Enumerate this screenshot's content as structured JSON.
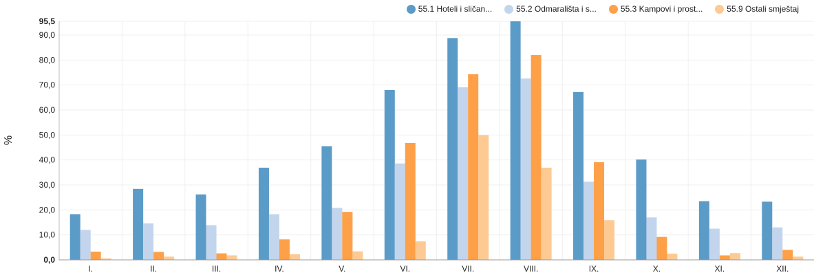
{
  "chart_data": {
    "type": "bar",
    "title": "",
    "xlabel": "",
    "ylabel": "%",
    "ylim": [
      0,
      95.5
    ],
    "yticks": [
      "0,0",
      "10,0",
      "20,0",
      "30,0",
      "40,0",
      "50,0",
      "60,0",
      "70,0",
      "80,0",
      "90,0",
      "95,5"
    ],
    "ytick_values": [
      0,
      10,
      20,
      30,
      40,
      50,
      60,
      70,
      80,
      90,
      95.5
    ],
    "grid": true,
    "legend_position": "top-right",
    "categories": [
      "I.",
      "II.",
      "III.",
      "IV.",
      "V.",
      "VI.",
      "VII.",
      "VIII.",
      "IX.",
      "X.",
      "XI.",
      "XII."
    ],
    "series": [
      {
        "name": "55.1 Hoteli i sličan...",
        "color": "#5b9bc8",
        "values": [
          18.3,
          28.4,
          26.2,
          36.9,
          45.5,
          68.0,
          88.8,
          95.5,
          67.2,
          40.2,
          23.5,
          23.3
        ]
      },
      {
        "name": "55.2 Odmarališta i s...",
        "color": "#c3d5ec",
        "values": [
          12.0,
          14.6,
          13.9,
          18.3,
          20.8,
          38.6,
          69.1,
          72.6,
          31.3,
          17.0,
          12.5,
          13.0
        ]
      },
      {
        "name": "55.3 Kampovi i prost...",
        "color": "#fda048",
        "values": [
          3.3,
          3.2,
          2.6,
          8.2,
          19.2,
          46.8,
          74.3,
          82.0,
          39.1,
          9.2,
          1.8,
          4.0
        ]
      },
      {
        "name": "55.9 Ostali smještaj",
        "color": "#fdca94",
        "values": [
          0.6,
          1.3,
          1.8,
          2.3,
          3.4,
          7.4,
          50.0,
          36.9,
          15.9,
          2.5,
          2.7,
          1.3
        ]
      }
    ]
  }
}
